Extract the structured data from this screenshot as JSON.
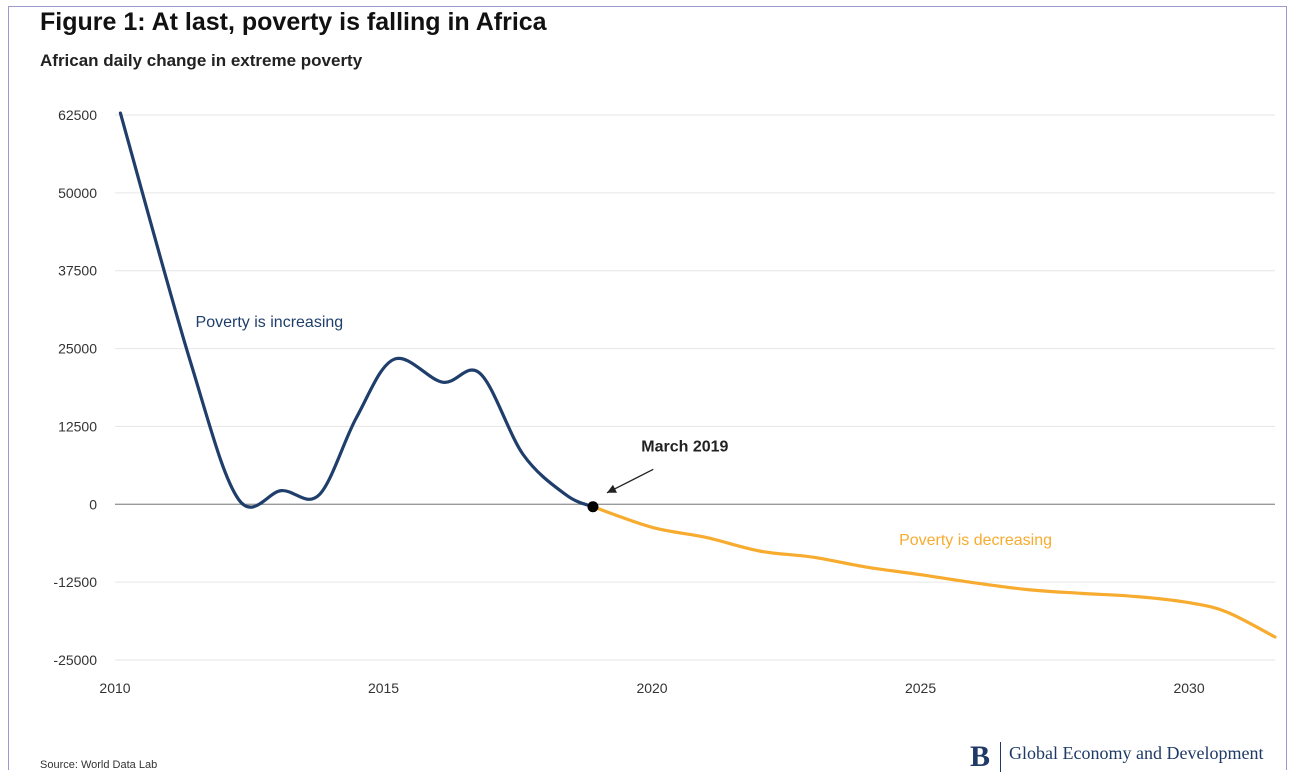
{
  "header": {
    "title": "Figure 1: At last, poverty is falling in Africa",
    "subtitle": "African daily change in extreme poverty"
  },
  "footer": {
    "source": "Source: World Data Lab",
    "brand_mark": "B",
    "brand_name": "Global Economy and Development"
  },
  "colors": {
    "increasing": "#1f3e6b",
    "decreasing": "#f7ab2f",
    "grid": "#e6e6e6",
    "zero_line": "#999999",
    "marker": "#000000"
  },
  "chart_data": {
    "type": "line",
    "title": "Figure 1: At last, poverty is falling in Africa",
    "subtitle": "African daily change in extreme poverty",
    "xlabel": "",
    "ylabel": "",
    "xlim": [
      2010,
      2031.6
    ],
    "ylim": [
      -25000,
      62500
    ],
    "x_ticks": [
      2010,
      2015,
      2020,
      2025,
      2030
    ],
    "y_ticks": [
      62500,
      50000,
      37500,
      25000,
      12500,
      0,
      -12500,
      -25000
    ],
    "grid": "horizontal",
    "series": [
      {
        "name": "Poverty is increasing",
        "values_points": [
          [
            2010.1,
            62800
          ],
          [
            2011.4,
            23000
          ],
          [
            2012.3,
            800
          ],
          [
            2013.1,
            2200
          ],
          [
            2013.8,
            1500
          ],
          [
            2014.5,
            14000
          ],
          [
            2015.2,
            23300
          ],
          [
            2016.1,
            19600
          ],
          [
            2016.8,
            21000
          ],
          [
            2017.6,
            8000
          ],
          [
            2018.4,
            1500
          ],
          [
            2018.9,
            -400
          ]
        ]
      },
      {
        "name": "Poverty is decreasing",
        "values_points": [
          [
            2018.9,
            -400
          ],
          [
            2020.0,
            -3700
          ],
          [
            2021.0,
            -5300
          ],
          [
            2022.0,
            -7500
          ],
          [
            2023.0,
            -8500
          ],
          [
            2024.0,
            -10100
          ],
          [
            2025.0,
            -11300
          ],
          [
            2026.0,
            -12600
          ],
          [
            2027.0,
            -13700
          ],
          [
            2028.0,
            -14300
          ],
          [
            2029.0,
            -14800
          ],
          [
            2030.0,
            -15800
          ],
          [
            2030.7,
            -17300
          ],
          [
            2031.6,
            -21300
          ]
        ]
      }
    ],
    "annotations": [
      {
        "text": "Poverty is increasing",
        "x": 2011.5,
        "y": 28500,
        "series": 0
      },
      {
        "text": "Poverty is decreasing",
        "x": 2024.6,
        "y": -6500,
        "series": 1
      },
      {
        "text": "March 2019",
        "x": 2019.8,
        "y": 8500,
        "arrow_to": [
          2018.9,
          -400
        ]
      }
    ],
    "marker": {
      "label": "March 2019",
      "x": 2018.9,
      "y": -400
    }
  }
}
